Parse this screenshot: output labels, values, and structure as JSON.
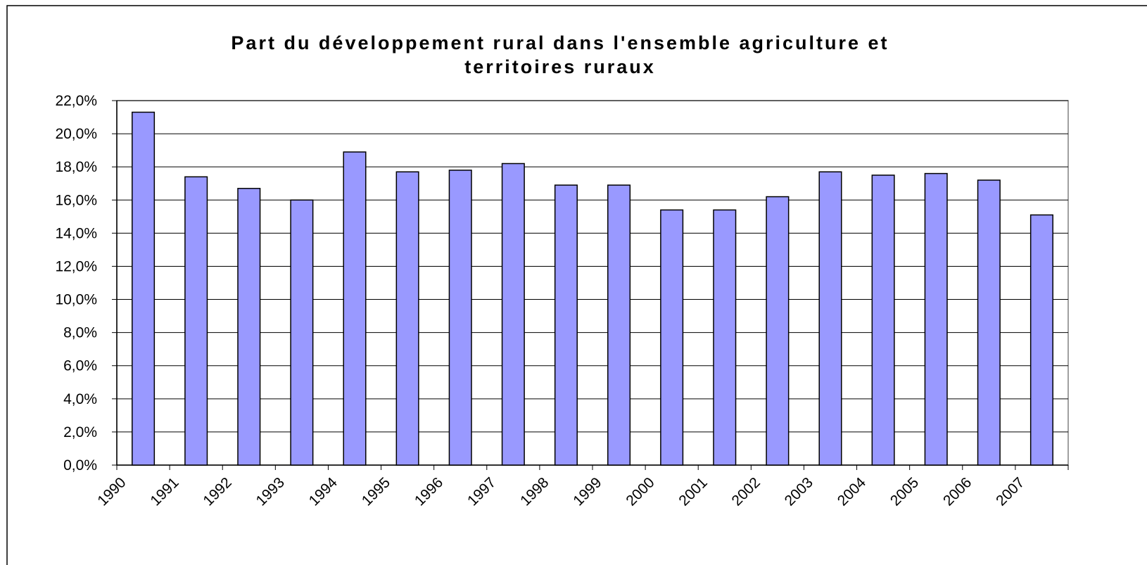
{
  "chart_data": {
    "type": "bar",
    "title": "Part du développement rural dans l'ensemble agriculture et territoires ruraux",
    "categories": [
      "1990",
      "1991",
      "1992",
      "1993",
      "1994",
      "1995",
      "1996",
      "1997",
      "1998",
      "1999",
      "2000",
      "2001",
      "2002",
      "2003",
      "2004",
      "2005",
      "2006",
      "2007"
    ],
    "values": [
      21.3,
      17.4,
      16.7,
      16.0,
      18.9,
      17.7,
      17.8,
      18.2,
      16.9,
      16.9,
      15.4,
      15.4,
      16.2,
      17.7,
      17.5,
      17.6,
      17.2,
      15.1
    ],
    "color": "#9999ff",
    "ylim": [
      0,
      22
    ],
    "yticks": [
      {
        "value": 0,
        "label": "0,0%"
      },
      {
        "value": 2,
        "label": "2,0%"
      },
      {
        "value": 4,
        "label": "4,0%"
      },
      {
        "value": 6,
        "label": "6,0%"
      },
      {
        "value": 8,
        "label": "8,0%"
      },
      {
        "value": 10,
        "label": "10,0%"
      },
      {
        "value": 12,
        "label": "12,0%"
      },
      {
        "value": 14,
        "label": "14,0%"
      },
      {
        "value": 16,
        "label": "16,0%"
      },
      {
        "value": 18,
        "label": "18,0%"
      },
      {
        "value": 20,
        "label": "20,0%"
      },
      {
        "value": 22,
        "label": "22,0%"
      }
    ],
    "grid": true
  }
}
